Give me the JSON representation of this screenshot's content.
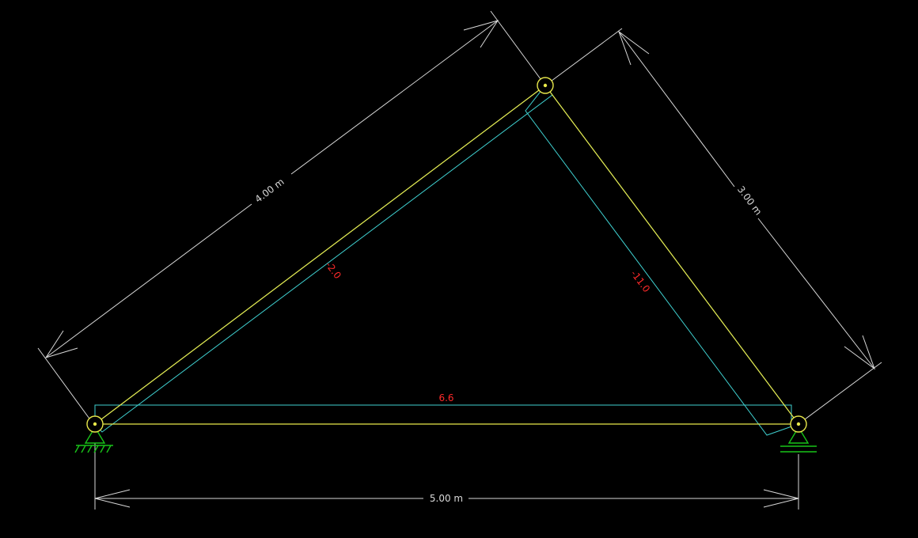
{
  "colors": {
    "background": "#000000",
    "member": "#e8e84a",
    "axial_force_diagram": "#3fd1d1",
    "force_label": "#ff2a2a",
    "dimension": "#d9d9d9",
    "support": "#19c419"
  },
  "dimensions": {
    "left_member_length": "4.00 m",
    "right_member_length": "3.00 m",
    "base_span": "5.00 m"
  },
  "axial_forces": {
    "left_member": "-2.0",
    "right_member": "-11.0",
    "bottom_member": "6.6"
  },
  "supports": {
    "left": "pinned-support",
    "right": "roller-support"
  }
}
